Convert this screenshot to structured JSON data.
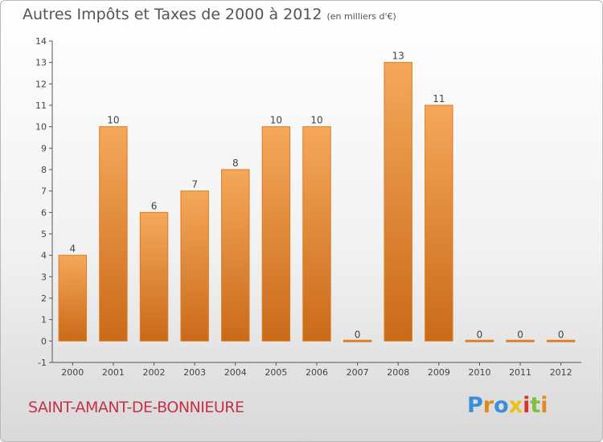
{
  "title": "Autres Impôts et Taxes de 2000 à 2012",
  "subtitle": "(en milliers d'€)",
  "commune": "SAINT-AMANT-DE-BONNIEURE",
  "logo": {
    "text": "Proxiti",
    "letter_colors": [
      "#3a8fd6",
      "#e08a1e",
      "#3a8fd6",
      "#e8c21a",
      "#d9342b",
      "#7fbf3a",
      "#e08a1e"
    ]
  },
  "colors": {
    "bar_light": "#f5a85a",
    "bar_dark": "#c96a1a",
    "title": "#555555",
    "commune": "#c83246"
  },
  "chart_data": {
    "type": "bar",
    "categories": [
      "2000",
      "2001",
      "2002",
      "2003",
      "2004",
      "2005",
      "2006",
      "2007",
      "2008",
      "2009",
      "2010",
      "2011",
      "2012"
    ],
    "values": [
      4,
      10,
      6,
      7,
      8,
      10,
      10,
      0,
      13,
      11,
      0,
      0,
      0
    ],
    "value_labels": [
      "4",
      "10",
      "6",
      "7",
      "8",
      "10",
      "10",
      "0",
      "13",
      "11",
      "0",
      "0",
      "0"
    ],
    "title": "Autres Impôts et Taxes de 2000 à 2012",
    "xlabel": "",
    "ylabel": "",
    "ylim": [
      -1,
      14
    ],
    "yticks": [
      -1,
      0,
      1,
      2,
      3,
      4,
      5,
      6,
      7,
      8,
      9,
      10,
      11,
      12,
      13,
      14
    ],
    "ytick_labels": [
      "-1",
      "0",
      "1",
      "2",
      "3",
      "4",
      "5",
      "6",
      "7",
      "8",
      "9",
      "10",
      "11",
      "12",
      "13",
      "14"
    ],
    "grid": false,
    "legend": "none"
  }
}
